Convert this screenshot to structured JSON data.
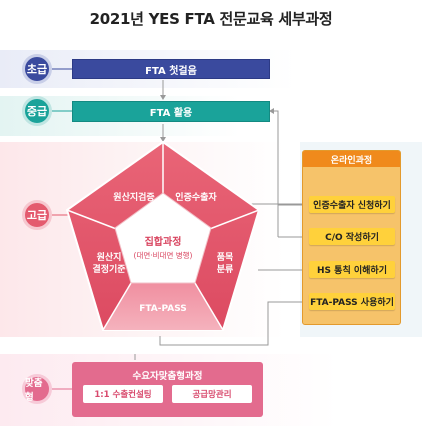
{
  "title": "2021년 YES FTA 전문교육 세부과정",
  "levels": {
    "beginner": "초급",
    "intermediate": "중급",
    "advanced": "고급",
    "custom": "맞춤형"
  },
  "courses": {
    "beginner_bar": "FTA 첫걸음",
    "intermediate_bar": "FTA 활용"
  },
  "pentagon": {
    "top_left": "원산지검증",
    "top_right": "인증수출자",
    "left": "원산지\n결정기준",
    "right": "품목\n분류",
    "bottom": "FTA-PASS",
    "center_title": "집합과정",
    "center_sub": "(대면·비대면 병행)"
  },
  "online": {
    "header": "온라인과정",
    "items": [
      "인증수출자 신청하기",
      "C/O 작성하기",
      "HS 통칙 이해하기",
      "FTA-PASS 사용하기"
    ]
  },
  "custom_course": {
    "header": "수요자맞춤형과정",
    "items": [
      "1:1 수출컨설팅",
      "공급망관리"
    ]
  },
  "colors": {
    "beginner": "#3a4a9e",
    "intermediate": "#1aa39a",
    "advanced": "#e45a6e",
    "custom": "#e36b8e",
    "online_orange": "#f08a1c",
    "pill_yellow": "#ffd13b"
  }
}
